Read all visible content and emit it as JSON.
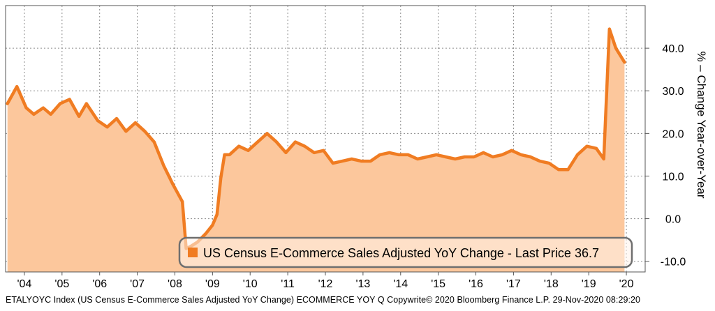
{
  "chart_data": {
    "type": "area",
    "ylabel": "% – Change Year-over-Year",
    "ylim": [
      -12.5,
      50
    ],
    "yticks": [
      -10,
      0,
      10,
      20,
      30,
      40
    ],
    "ytick_labels": [
      "-10.0",
      "0.0",
      "10.0",
      "20.0",
      "30.0",
      "40.0"
    ],
    "xlim": [
      2003.5,
      2020.5
    ],
    "xticks": [
      2004,
      2005,
      2006,
      2007,
      2008,
      2009,
      2010,
      2011,
      2012,
      2013,
      2014,
      2015,
      2016,
      2017,
      2018,
      2019,
      2020
    ],
    "xtick_labels": [
      "'04",
      "'05",
      "'06",
      "'07",
      "'08",
      "'09",
      "'10",
      "'11",
      "'12",
      "'13",
      "'14",
      "'15",
      "'16",
      "'17",
      "'18",
      "'19",
      "'20"
    ],
    "grid": true,
    "series": [
      {
        "name": "US Census E-Commerce Sales Adjusted YoY Change",
        "color": "#f07c22",
        "fill_color": "#fcc79c",
        "x": [
          2003.55,
          2003.8,
          2004.05,
          2004.25,
          2004.5,
          2004.7,
          2004.95,
          2005.2,
          2005.45,
          2005.65,
          2005.95,
          2006.2,
          2006.45,
          2006.7,
          2006.95,
          2007.2,
          2007.45,
          2007.7,
          2007.95,
          2008.2,
          2008.3,
          2008.42,
          2008.6,
          2008.82,
          2009.0,
          2009.12,
          2009.22,
          2009.32,
          2009.45,
          2009.7,
          2009.95,
          2010.2,
          2010.45,
          2010.7,
          2010.95,
          2011.2,
          2011.45,
          2011.7,
          2011.95,
          2012.2,
          2012.45,
          2012.7,
          2012.95,
          2013.2,
          2013.45,
          2013.7,
          2013.95,
          2014.2,
          2014.45,
          2014.7,
          2014.95,
          2015.2,
          2015.45,
          2015.7,
          2015.95,
          2016.2,
          2016.45,
          2016.7,
          2016.95,
          2017.2,
          2017.45,
          2017.7,
          2017.95,
          2018.2,
          2018.45,
          2018.7,
          2018.95,
          2019.2,
          2019.4,
          2019.55,
          2019.72,
          2019.95
        ],
        "values": [
          27.0,
          31.0,
          26.0,
          24.5,
          26.0,
          24.5,
          27.0,
          28.0,
          24.0,
          27.0,
          23.0,
          21.5,
          23.5,
          20.5,
          22.5,
          20.5,
          18.0,
          12.5,
          8.0,
          4.0,
          -7.0,
          -6.5,
          -5.5,
          -3.5,
          -1.5,
          1.0,
          9.5,
          15.0,
          15.0,
          17.0,
          16.0,
          18.0,
          20.0,
          18.0,
          15.5,
          18.0,
          17.0,
          15.5,
          16.0,
          13.0,
          13.5,
          14.0,
          13.5,
          13.5,
          15.0,
          15.5,
          15.0,
          15.0,
          14.0,
          14.5,
          15.0,
          14.5,
          14.0,
          14.5,
          14.5,
          15.5,
          14.5,
          15.0,
          16.0,
          15.0,
          14.5,
          13.5,
          13.0,
          11.5,
          11.5,
          15.0,
          17.0,
          16.5,
          14.0,
          44.5,
          40.0,
          36.7
        ]
      }
    ],
    "legend": {
      "position": "bottom-center",
      "text": "US Census E-Commerce Sales Adjusted YoY Change - Last Price 36.7",
      "color": "#f07c22"
    }
  },
  "footer": {
    "text": "ETALYOYC Index (US Census E-Commerce Sales Adjusted YoY Change) ECOMMERCE YOY Q Copywrite© 2020 Bloomberg Finance L.P.  29-Nov-2020 08:29:20"
  }
}
